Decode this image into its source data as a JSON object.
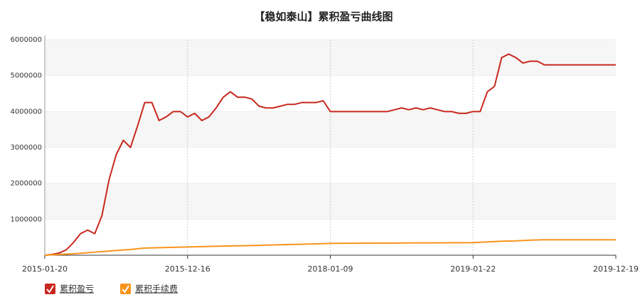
{
  "chart_data": {
    "type": "line",
    "title": "【稳如泰山】累积盈亏曲线图",
    "categories": [
      "2015-01-20",
      null,
      null,
      null,
      null,
      null,
      null,
      null,
      null,
      null,
      null,
      null,
      null,
      null,
      null,
      null,
      null,
      null,
      null,
      null,
      "2015-12-16",
      null,
      null,
      null,
      null,
      null,
      null,
      null,
      null,
      null,
      null,
      null,
      null,
      null,
      null,
      null,
      null,
      null,
      null,
      null,
      "2018-01-09",
      null,
      null,
      null,
      null,
      null,
      null,
      null,
      null,
      null,
      null,
      null,
      null,
      null,
      null,
      null,
      null,
      null,
      null,
      null,
      "2019-01-22",
      null,
      null,
      null,
      null,
      null,
      null,
      null,
      null,
      null,
      null,
      null,
      null,
      null,
      null,
      null,
      null,
      null,
      null,
      null,
      "2019-12-19"
    ],
    "series": [
      {
        "name": "累积盈亏",
        "color": "#c8281e",
        "values": [
          0,
          20000,
          60000,
          150000,
          350000,
          600000,
          700000,
          600000,
          1100000,
          2100000,
          2800000,
          3200000,
          3000000,
          3600000,
          4250000,
          4250000,
          3750000,
          3850000,
          4000000,
          4000000,
          3850000,
          3950000,
          3750000,
          3850000,
          4100000,
          4400000,
          4550000,
          4400000,
          4400000,
          4350000,
          4150000,
          4100000,
          4100000,
          4150000,
          4200000,
          4200000,
          4250000,
          4250000,
          4250000,
          4300000,
          4000000,
          4000000,
          4000000,
          4000000,
          4000000,
          4000000,
          4000000,
          4000000,
          4000000,
          4050000,
          4100000,
          4050000,
          4100000,
          4050000,
          4100000,
          4050000,
          4000000,
          4000000,
          3950000,
          3950000,
          4000000,
          4000000,
          4550000,
          4700000,
          5500000,
          5600000,
          5500000,
          5350000,
          5400000,
          5400000,
          5300000,
          5300000,
          5300000,
          5300000,
          5300000,
          5300000,
          5300000,
          5300000,
          5300000,
          5300000,
          5300000
        ]
      },
      {
        "name": "累积手续费",
        "color": "#f7941d",
        "values": [
          0,
          10000,
          20000,
          30000,
          40000,
          55000,
          70000,
          85000,
          100000,
          115000,
          130000,
          145000,
          160000,
          180000,
          200000,
          205000,
          210000,
          215000,
          220000,
          225000,
          230000,
          235000,
          240000,
          245000,
          250000,
          255000,
          260000,
          262000,
          265000,
          270000,
          275000,
          280000,
          285000,
          290000,
          295000,
          300000,
          305000,
          310000,
          315000,
          320000,
          330000,
          331000,
          332000,
          333000,
          334000,
          335000,
          336000,
          337000,
          338000,
          339000,
          340000,
          341000,
          342000,
          343000,
          344000,
          345000,
          346000,
          347000,
          348000,
          349000,
          350000,
          360000,
          370000,
          380000,
          390000,
          395000,
          400000,
          410000,
          420000,
          425000,
          430000,
          430000,
          430000,
          430000,
          430000,
          430000,
          430000,
          430000,
          430000,
          430000,
          430000
        ]
      }
    ],
    "ylim": [
      0,
      6000000
    ],
    "yticks": [
      1000000,
      2000000,
      3000000,
      4000000,
      5000000,
      6000000
    ],
    "grid": true
  }
}
